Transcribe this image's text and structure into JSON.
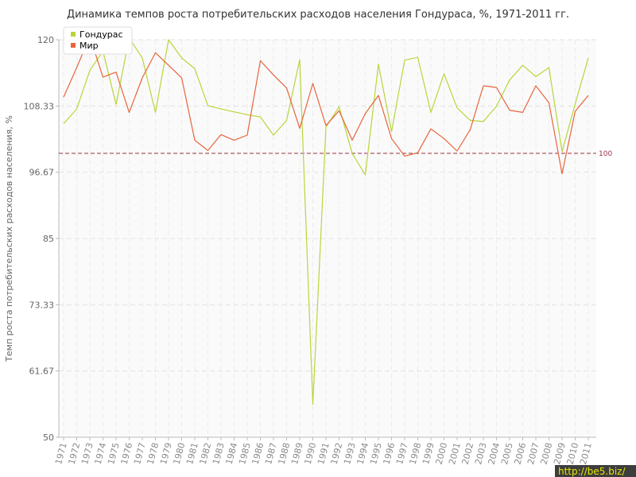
{
  "chart_data": {
    "type": "line",
    "title": "Динамика темпов роста потребительских расходов населения Гондураса, %, 1971-2011 гг.",
    "ylabel": "Темп роста потребительских расходов населения, %",
    "ylim": [
      50,
      120
    ],
    "yticks": [
      "50",
      "61.67",
      "73.33",
      "85",
      "96.67",
      "108.33",
      "120"
    ],
    "x": [
      "1971",
      "1972",
      "1973",
      "1974",
      "1975",
      "1976",
      "1977",
      "1978",
      "1979",
      "1980",
      "1981",
      "1982",
      "1983",
      "1984",
      "1985",
      "1986",
      "1987",
      "1988",
      "1989",
      "1990",
      "1991",
      "1992",
      "1993",
      "1994",
      "1995",
      "1996",
      "1997",
      "1998",
      "1999",
      "2000",
      "2001",
      "2002",
      "2003",
      "2004",
      "2005",
      "2006",
      "2007",
      "2008",
      "2009",
      "2010",
      "2011"
    ],
    "series": [
      {
        "name": "Гондурас",
        "color": "#b8d63a",
        "values": [
          105.2,
          107.8,
          114.6,
          118.0,
          108.6,
          120.3,
          116.8,
          107.2,
          120.0,
          116.8,
          114.9,
          108.4,
          107.8,
          107.3,
          106.8,
          106.4,
          103.2,
          105.8,
          116.5,
          55.8,
          104.6,
          108.2,
          100.0,
          96.2,
          115.7,
          103.8,
          116.4,
          116.9,
          107.2,
          114.0,
          108.0,
          105.8,
          105.6,
          108.3,
          112.9,
          115.5,
          113.5,
          115.1,
          100.3,
          108.7,
          116.8
        ]
      },
      {
        "name": "Мир",
        "color": "#e8643c",
        "values": [
          109.9,
          115.1,
          120.6,
          113.4,
          114.3,
          107.2,
          113.3,
          117.7,
          115.5,
          113.3,
          102.3,
          100.5,
          103.3,
          102.3,
          103.2,
          116.3,
          113.8,
          111.5,
          104.4,
          112.3,
          104.9,
          107.5,
          102.3,
          107.0,
          110.2,
          102.6,
          99.5,
          100.1,
          104.3,
          102.6,
          100.4,
          104.2,
          111.9,
          111.6,
          107.6,
          107.2,
          111.9,
          108.9,
          96.4,
          107.4,
          110.2
        ]
      }
    ],
    "reference_line": {
      "value": 100,
      "label": "100",
      "color": "#993344"
    },
    "grid": true,
    "legend_position": "top-left"
  },
  "watermark": "http://be5.biz/"
}
